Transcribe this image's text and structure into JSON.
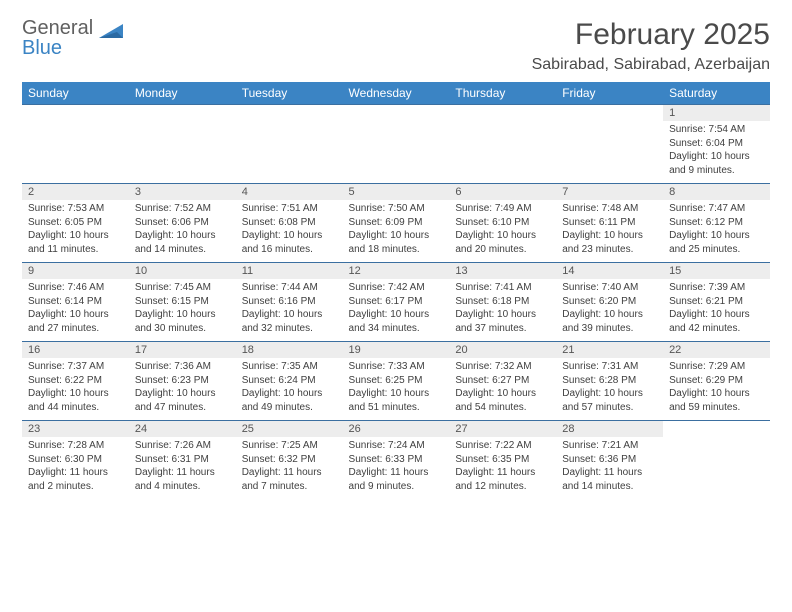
{
  "logo": {
    "word1": "General",
    "word2": "Blue",
    "word1_color": "#606060",
    "word2_color": "#3b84c4"
  },
  "title": "February 2025",
  "location": "Sabirabad, Sabirabad, Azerbaijan",
  "header_bg": "#3b84c4",
  "header_text_color": "#ffffff",
  "daynum_bg": "#ededed",
  "row_border_color": "#3b6fa0",
  "body_text_color": "#404040",
  "day_headers": [
    "Sunday",
    "Monday",
    "Tuesday",
    "Wednesday",
    "Thursday",
    "Friday",
    "Saturday"
  ],
  "weeks": [
    [
      null,
      null,
      null,
      null,
      null,
      null,
      {
        "n": "1",
        "sr": "7:54 AM",
        "ss": "6:04 PM",
        "dl": "10 hours and 9 minutes."
      }
    ],
    [
      {
        "n": "2",
        "sr": "7:53 AM",
        "ss": "6:05 PM",
        "dl": "10 hours and 11 minutes."
      },
      {
        "n": "3",
        "sr": "7:52 AM",
        "ss": "6:06 PM",
        "dl": "10 hours and 14 minutes."
      },
      {
        "n": "4",
        "sr": "7:51 AM",
        "ss": "6:08 PM",
        "dl": "10 hours and 16 minutes."
      },
      {
        "n": "5",
        "sr": "7:50 AM",
        "ss": "6:09 PM",
        "dl": "10 hours and 18 minutes."
      },
      {
        "n": "6",
        "sr": "7:49 AM",
        "ss": "6:10 PM",
        "dl": "10 hours and 20 minutes."
      },
      {
        "n": "7",
        "sr": "7:48 AM",
        "ss": "6:11 PM",
        "dl": "10 hours and 23 minutes."
      },
      {
        "n": "8",
        "sr": "7:47 AM",
        "ss": "6:12 PM",
        "dl": "10 hours and 25 minutes."
      }
    ],
    [
      {
        "n": "9",
        "sr": "7:46 AM",
        "ss": "6:14 PM",
        "dl": "10 hours and 27 minutes."
      },
      {
        "n": "10",
        "sr": "7:45 AM",
        "ss": "6:15 PM",
        "dl": "10 hours and 30 minutes."
      },
      {
        "n": "11",
        "sr": "7:44 AM",
        "ss": "6:16 PM",
        "dl": "10 hours and 32 minutes."
      },
      {
        "n": "12",
        "sr": "7:42 AM",
        "ss": "6:17 PM",
        "dl": "10 hours and 34 minutes."
      },
      {
        "n": "13",
        "sr": "7:41 AM",
        "ss": "6:18 PM",
        "dl": "10 hours and 37 minutes."
      },
      {
        "n": "14",
        "sr": "7:40 AM",
        "ss": "6:20 PM",
        "dl": "10 hours and 39 minutes."
      },
      {
        "n": "15",
        "sr": "7:39 AM",
        "ss": "6:21 PM",
        "dl": "10 hours and 42 minutes."
      }
    ],
    [
      {
        "n": "16",
        "sr": "7:37 AM",
        "ss": "6:22 PM",
        "dl": "10 hours and 44 minutes."
      },
      {
        "n": "17",
        "sr": "7:36 AM",
        "ss": "6:23 PM",
        "dl": "10 hours and 47 minutes."
      },
      {
        "n": "18",
        "sr": "7:35 AM",
        "ss": "6:24 PM",
        "dl": "10 hours and 49 minutes."
      },
      {
        "n": "19",
        "sr": "7:33 AM",
        "ss": "6:25 PM",
        "dl": "10 hours and 51 minutes."
      },
      {
        "n": "20",
        "sr": "7:32 AM",
        "ss": "6:27 PM",
        "dl": "10 hours and 54 minutes."
      },
      {
        "n": "21",
        "sr": "7:31 AM",
        "ss": "6:28 PM",
        "dl": "10 hours and 57 minutes."
      },
      {
        "n": "22",
        "sr": "7:29 AM",
        "ss": "6:29 PM",
        "dl": "10 hours and 59 minutes."
      }
    ],
    [
      {
        "n": "23",
        "sr": "7:28 AM",
        "ss": "6:30 PM",
        "dl": "11 hours and 2 minutes."
      },
      {
        "n": "24",
        "sr": "7:26 AM",
        "ss": "6:31 PM",
        "dl": "11 hours and 4 minutes."
      },
      {
        "n": "25",
        "sr": "7:25 AM",
        "ss": "6:32 PM",
        "dl": "11 hours and 7 minutes."
      },
      {
        "n": "26",
        "sr": "7:24 AM",
        "ss": "6:33 PM",
        "dl": "11 hours and 9 minutes."
      },
      {
        "n": "27",
        "sr": "7:22 AM",
        "ss": "6:35 PM",
        "dl": "11 hours and 12 minutes."
      },
      {
        "n": "28",
        "sr": "7:21 AM",
        "ss": "6:36 PM",
        "dl": "11 hours and 14 minutes."
      },
      null
    ]
  ],
  "labels": {
    "sunrise": "Sunrise:",
    "sunset": "Sunset:",
    "daylight": "Daylight:"
  },
  "fonts": {
    "title_size": 30,
    "location_size": 16,
    "header_size": 12,
    "daynum_size": 11,
    "body_size": 10
  }
}
